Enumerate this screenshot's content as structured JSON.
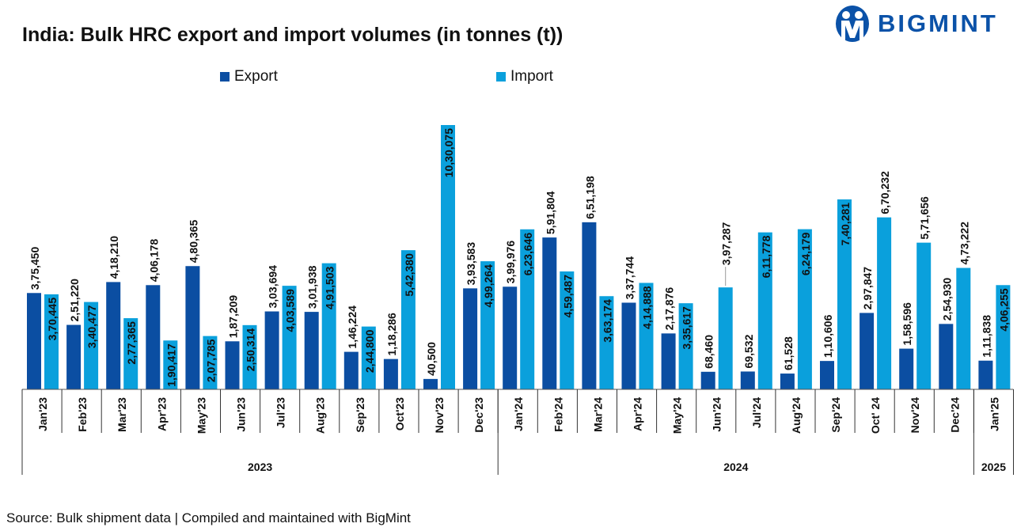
{
  "title": "India: Bulk HRC export and import volumes (in tonnes (t))",
  "logo": {
    "text": "BIGMINT",
    "color": "#0b52a8"
  },
  "source": "Source: Bulk shipment data | Compiled and maintained with BigMint",
  "chart_data": {
    "type": "bar",
    "title": "India: Bulk HRC export and import volumes (in tonnes (t))",
    "categories": [
      "Jan'23",
      "Feb'23",
      "Mar'23",
      "Apr'23",
      "May'23",
      "Jun'23",
      "Jul'23",
      "Aug'23",
      "Sep'23",
      "Oct'23",
      "Nov'23",
      "Dec'23",
      "Jan'24",
      "Feb'24",
      "Mar'24",
      "Apr'24",
      "May'24",
      "Jun'24",
      "Jul'24",
      "Aug'24",
      "Sep'24",
      "Oct' 24",
      "Nov'24",
      "Dec'24",
      "Jan'25"
    ],
    "groups": [
      {
        "label": "2023",
        "count": 12
      },
      {
        "label": "2024",
        "count": 12
      },
      {
        "label": "2025",
        "count": 1
      }
    ],
    "series": [
      {
        "name": "Export",
        "color": "#0b4ea2",
        "values": [
          375450,
          251220,
          418210,
          406178,
          480365,
          187209,
          303694,
          301938,
          146224,
          118286,
          40500,
          393583,
          399976,
          591804,
          651198,
          337744,
          217876,
          68460,
          69532,
          61528,
          110606,
          297847,
          158596,
          254930,
          111838
        ],
        "labels": [
          "3,75,450",
          "2,51,220",
          "4,18,210",
          "4,06,178",
          "4,80,365",
          "1,87,209",
          "3,03,694",
          "3,01,938",
          "1,46,224",
          "1,18,286",
          "40,500",
          "3,93,583",
          "3,99,976",
          "5,91,804",
          "6,51,198",
          "3,37,744",
          "2,17,876",
          "68,460",
          "69,532",
          "61,528",
          "1,10,606",
          "2,97,847",
          "1,58,596",
          "2,54,930",
          "1,11,838"
        ]
      },
      {
        "name": "Import",
        "color": "#0aa0dc",
        "values": [
          370445,
          340477,
          277365,
          190417,
          207785,
          250314,
          403589,
          491503,
          244800,
          542380,
          1030075,
          499264,
          623646,
          459487,
          363174,
          414888,
          335617,
          397287,
          611778,
          624179,
          740281,
          670232,
          571656,
          473222,
          406255
        ],
        "labels": [
          "3,70,445",
          "3,40,477",
          "2,77,365",
          "1,90,417",
          "2,07,785",
          "2,50,314",
          "4,03,589",
          "4,91,503",
          "2,44,800",
          "5,42,380",
          "10,30,075",
          "4,99,264",
          "6,23,646",
          "4,59,487",
          "3,63,174",
          "4,14,888",
          "3,35,617",
          "3,97,287",
          "6,11,778",
          "6,24,179",
          "7,40,281",
          "6,70,232",
          "5,71,656",
          "4,73,222",
          "4,06,255"
        ]
      }
    ],
    "ylim": [
      0,
      1030075
    ],
    "legend": "top",
    "grid": false,
    "xlabel": "",
    "ylabel": ""
  }
}
